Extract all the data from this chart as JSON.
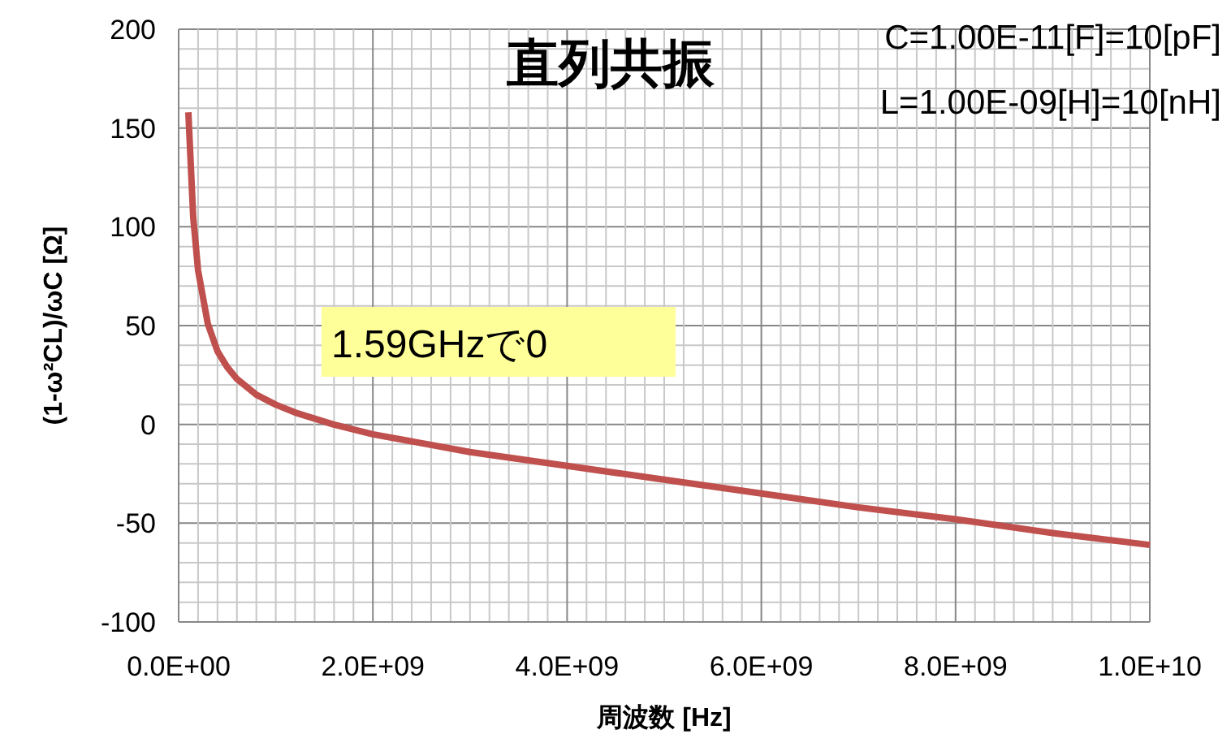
{
  "chart_data": {
    "type": "line",
    "title": "直列共振",
    "xlabel": "周波数  [Hz]",
    "ylabel": "(1-ω²CL)/ωC  [Ω]",
    "annotations": [
      "C=1.00E-11[F]=10[pF]",
      "L=1.00E-09[H]=10[nH]",
      "1.59GHzで0"
    ],
    "x": [
      100000000.0,
      150000000.0,
      200000000.0,
      300000000.0,
      400000000.0,
      500000000.0,
      600000000.0,
      800000000.0,
      1000000000.0,
      1200000000.0,
      1590000000.0,
      2000000000.0,
      3000000000.0,
      4000000000.0,
      5000000000.0,
      6000000000.0,
      7000000000.0,
      8000000000.0,
      9000000000.0,
      10000000000.0
    ],
    "series": [
      {
        "color": "#c0504d",
        "values": [
          158,
          105,
          78,
          51,
          37,
          29,
          23,
          15,
          10,
          6,
          0,
          -5,
          -14,
          -21,
          -28,
          -35,
          -42,
          -48,
          -55,
          -61
        ]
      }
    ],
    "xlim": [
      0,
      10000000000.0
    ],
    "ylim": [
      -100,
      200
    ],
    "xticks": [
      {
        "value": 0,
        "label": "0.0E+00"
      },
      {
        "value": 200000000.0,
        "label": null
      },
      {
        "value": 400000000.0,
        "label": null
      },
      {
        "value": 600000000.0,
        "label": null
      },
      {
        "value": 800000000.0,
        "label": null
      },
      {
        "value": 1000000000.0,
        "label": null
      },
      {
        "value": 1200000000.0,
        "label": null
      },
      {
        "value": 1400000000.0,
        "label": null
      },
      {
        "value": 1600000000.0,
        "label": null
      },
      {
        "value": 1800000000.0,
        "label": null
      },
      {
        "value": 2000000000.0,
        "label": "2.0E+09"
      },
      {
        "value": 2200000000.0,
        "label": null
      },
      {
        "value": 2400000000.0,
        "label": null
      },
      {
        "value": 2600000000.0,
        "label": null
      },
      {
        "value": 2800000000.0,
        "label": null
      },
      {
        "value": 3000000000.0,
        "label": null
      },
      {
        "value": 3200000000.0,
        "label": null
      },
      {
        "value": 3400000000.0,
        "label": null
      },
      {
        "value": 3600000000.0,
        "label": null
      },
      {
        "value": 3800000000.0,
        "label": null
      },
      {
        "value": 4000000000.0,
        "label": "4.0E+09"
      },
      {
        "value": 4200000000.0,
        "label": null
      },
      {
        "value": 4400000000.0,
        "label": null
      },
      {
        "value": 4600000000.0,
        "label": null
      },
      {
        "value": 4800000000.0,
        "label": null
      },
      {
        "value": 5000000000.0,
        "label": null
      },
      {
        "value": 5200000000.0,
        "label": null
      },
      {
        "value": 5400000000.0,
        "label": null
      },
      {
        "value": 5600000000.0,
        "label": null
      },
      {
        "value": 5800000000.0,
        "label": null
      },
      {
        "value": 6000000000.0,
        "label": "6.0E+09"
      },
      {
        "value": 6200000000.0,
        "label": null
      },
      {
        "value": 6400000000.0,
        "label": null
      },
      {
        "value": 6600000000.0,
        "label": null
      },
      {
        "value": 6800000000.0,
        "label": null
      },
      {
        "value": 7000000000.0,
        "label": null
      },
      {
        "value": 7200000000.0,
        "label": null
      },
      {
        "value": 7400000000.0,
        "label": null
      },
      {
        "value": 7600000000.0,
        "label": null
      },
      {
        "value": 7800000000.0,
        "label": null
      },
      {
        "value": 8000000000.0,
        "label": "8.0E+09"
      },
      {
        "value": 8200000000.0,
        "label": null
      },
      {
        "value": 8400000000.0,
        "label": null
      },
      {
        "value": 8600000000.0,
        "label": null
      },
      {
        "value": 8800000000.0,
        "label": null
      },
      {
        "value": 9000000000.0,
        "label": null
      },
      {
        "value": 9200000000.0,
        "label": null
      },
      {
        "value": 9400000000.0,
        "label": null
      },
      {
        "value": 9600000000.0,
        "label": null
      },
      {
        "value": 9800000000.0,
        "label": null
      },
      {
        "value": 10000000000.0,
        "label": "1.0E+10"
      }
    ],
    "yticks": [
      -100,
      {
        "value": -90,
        "label": null
      },
      {
        "value": -80,
        "label": null
      },
      {
        "value": -70,
        "label": null
      },
      {
        "value": -60,
        "label": null
      },
      -50,
      {
        "value": -40,
        "label": null
      },
      {
        "value": -30,
        "label": null
      },
      {
        "value": -20,
        "label": null
      },
      {
        "value": -10,
        "label": null
      },
      0,
      {
        "value": 10,
        "label": null
      },
      {
        "value": 20,
        "label": null
      },
      {
        "value": 30,
        "label": null
      },
      {
        "value": 40,
        "label": null
      },
      50,
      {
        "value": 60,
        "label": null
      },
      {
        "value": 70,
        "label": null
      },
      {
        "value": 80,
        "label": null
      },
      {
        "value": 90,
        "label": null
      },
      100,
      {
        "value": 110,
        "label": null
      },
      {
        "value": 120,
        "label": null
      },
      {
        "value": 130,
        "label": null
      },
      {
        "value": 140,
        "label": null
      },
      150,
      {
        "value": 160,
        "label": null
      },
      {
        "value": 170,
        "label": null
      },
      {
        "value": 180,
        "label": null
      },
      {
        "value": 190,
        "label": null
      },
      200
    ],
    "grid": true,
    "marker": "none",
    "line_style": "solid"
  }
}
